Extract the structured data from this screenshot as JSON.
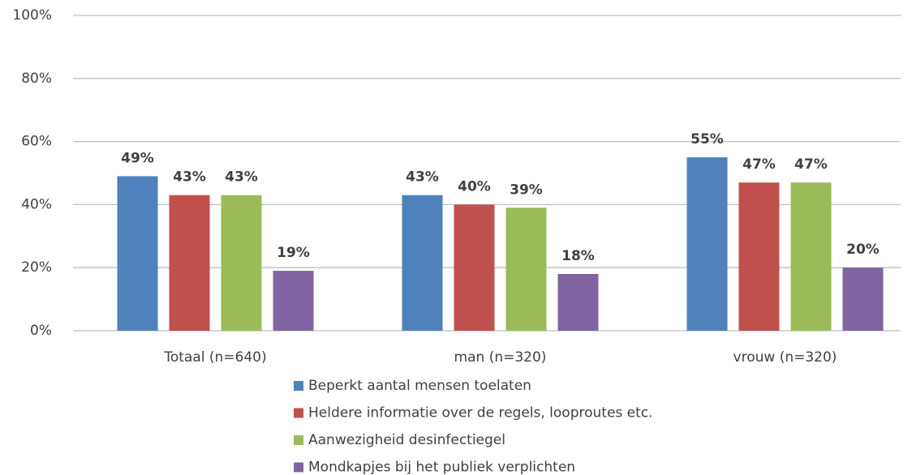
{
  "chart_data": {
    "type": "bar",
    "categories": [
      "Totaal (n=640)",
      "man (n=320)",
      "vrouw (n=320)"
    ],
    "series": [
      {
        "name": "Beperkt aantal mensen toelaten",
        "color": "#4f81bd",
        "values": [
          49,
          43,
          55
        ],
        "value_labels": [
          "49%",
          "43%",
          "55%"
        ]
      },
      {
        "name": "Heldere informatie over de regels, looproutes etc.",
        "color": "#c0504d",
        "values": [
          43,
          40,
          47
        ],
        "value_labels": [
          "43%",
          "40%",
          "47%"
        ]
      },
      {
        "name": "Aanwezigheid desinfectiegel",
        "color": "#9bbb59",
        "values": [
          43,
          39,
          47
        ],
        "value_labels": [
          "43%",
          "39%",
          "47%"
        ]
      },
      {
        "name": "Mondkapjes bij het publiek verplichten",
        "color": "#8064a2",
        "values": [
          19,
          18,
          20
        ],
        "value_labels": [
          "19%",
          "18%",
          "20%"
        ]
      }
    ],
    "ylim": [
      0,
      100
    ],
    "yticks": [
      {
        "value": 0,
        "label": "0%"
      },
      {
        "value": 20,
        "label": "20%"
      },
      {
        "value": 40,
        "label": "40%"
      },
      {
        "value": 60,
        "label": "60%"
      },
      {
        "value": 80,
        "label": "80%"
      },
      {
        "value": 100,
        "label": "100%"
      }
    ],
    "grid": true,
    "legend": "bottom"
  }
}
